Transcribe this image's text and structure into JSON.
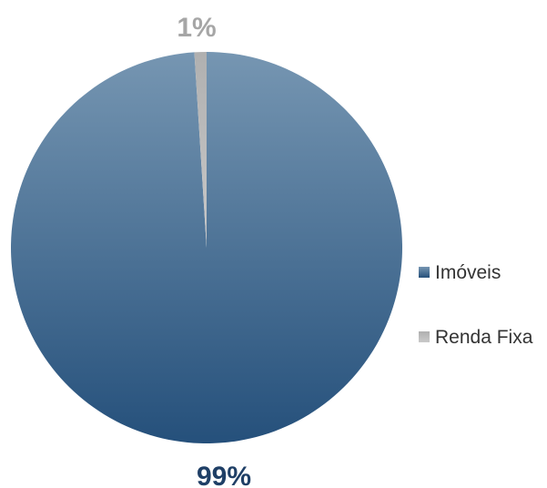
{
  "chart_data": {
    "type": "pie",
    "series": [
      {
        "name": "Imóveis",
        "value": 99,
        "label": "99%",
        "color_top": "#7696b2",
        "color_bottom": "#25507b",
        "label_color": "#1f3f66"
      },
      {
        "name": "Renda Fixa",
        "value": 1,
        "label": "1%",
        "color_top": "#b0b0b0",
        "color_bottom": "#c9c9c9",
        "label_color": "#a6a6a6"
      }
    ],
    "legend_position": "right",
    "start_angle": "top, clockwise"
  }
}
